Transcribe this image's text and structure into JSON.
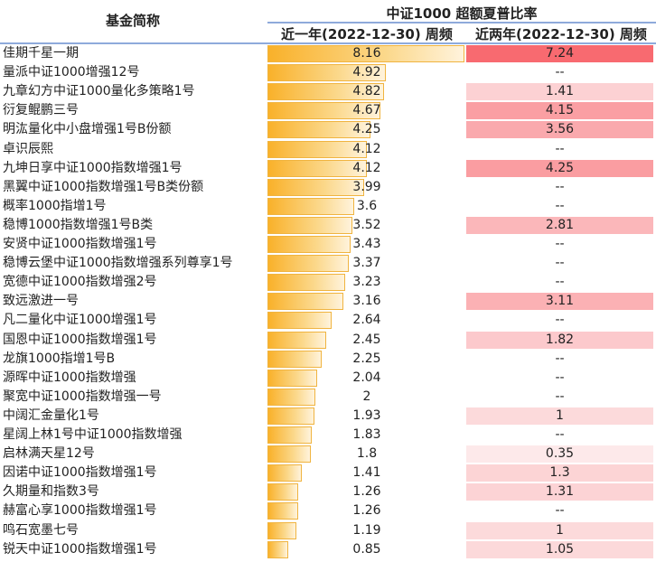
{
  "header": {
    "name_col": "基金简称",
    "group": "中证1000 超额夏普比率",
    "col1": "近一年(2022-12-30) 周频",
    "col2": "近两年(2022-12-30) 周频"
  },
  "colors": {
    "bar": "#f9b12a",
    "heat_high": "#f86a70",
    "heat_low": "#fde9ea"
  },
  "chart_data": {
    "type": "table",
    "rows": [
      {
        "name": "佳期千星一期",
        "v1": 8.16,
        "v1_text": "8.16",
        "v2": 7.24,
        "v2_text": "7.24"
      },
      {
        "name": "量派中证1000增强12号",
        "v1": 4.92,
        "v1_text": "4.92",
        "v2": null,
        "v2_text": "--"
      },
      {
        "name": "九章幻方中证1000量化多策略1号",
        "v1": 4.82,
        "v1_text": "4.82",
        "v2": 1.41,
        "v2_text": "1.41"
      },
      {
        "name": "衍复鲲鹏三号",
        "v1": 4.67,
        "v1_text": "4.67",
        "v2": 4.15,
        "v2_text": "4.15"
      },
      {
        "name": "明汯量化中小盘增强1号B份额",
        "v1": 4.25,
        "v1_text": "4.25",
        "v2": 3.56,
        "v2_text": "3.56"
      },
      {
        "name": "卓识辰熙",
        "v1": 4.12,
        "v1_text": "4.12",
        "v2": null,
        "v2_text": "--"
      },
      {
        "name": "九坤日享中证1000指数增强1号",
        "v1": 4.12,
        "v1_text": "4.12",
        "v2": 4.25,
        "v2_text": "4.25"
      },
      {
        "name": "黑翼中证1000指数增强1号B类份额",
        "v1": 3.99,
        "v1_text": "3.99",
        "v2": null,
        "v2_text": "--"
      },
      {
        "name": "概率1000指增1号",
        "v1": 3.6,
        "v1_text": "3.6",
        "v2": null,
        "v2_text": "--"
      },
      {
        "name": "稳博1000指数增强1号B类",
        "v1": 3.52,
        "v1_text": "3.52",
        "v2": 2.81,
        "v2_text": "2.81"
      },
      {
        "name": "安贤中证1000指数增强1号",
        "v1": 3.43,
        "v1_text": "3.43",
        "v2": null,
        "v2_text": "--"
      },
      {
        "name": "稳博云堡中证1000指数增强系列尊享1号",
        "v1": 3.37,
        "v1_text": "3.37",
        "v2": null,
        "v2_text": "--"
      },
      {
        "name": "宽德中证1000指数增强2号",
        "v1": 3.23,
        "v1_text": "3.23",
        "v2": null,
        "v2_text": "--"
      },
      {
        "name": "致远激进一号",
        "v1": 3.16,
        "v1_text": "3.16",
        "v2": 3.11,
        "v2_text": "3.11"
      },
      {
        "name": "凡二量化中证1000增强1号",
        "v1": 2.64,
        "v1_text": "2.64",
        "v2": null,
        "v2_text": "--"
      },
      {
        "name": "国恩中证1000指数增强1号",
        "v1": 2.45,
        "v1_text": "2.45",
        "v2": 1.82,
        "v2_text": "1.82"
      },
      {
        "name": "龙旗1000指增1号B",
        "v1": 2.25,
        "v1_text": "2.25",
        "v2": null,
        "v2_text": "--"
      },
      {
        "name": "源晖中证1000指数增强",
        "v1": 2.04,
        "v1_text": "2.04",
        "v2": null,
        "v2_text": "--"
      },
      {
        "name": "聚宽中证1000指数增强一号",
        "v1": 2,
        "v1_text": "2",
        "v2": null,
        "v2_text": "--"
      },
      {
        "name": "中阔汇金量化1号",
        "v1": 1.93,
        "v1_text": "1.93",
        "v2": 1,
        "v2_text": "1"
      },
      {
        "name": "星阔上林1号中证1000指数增强",
        "v1": 1.83,
        "v1_text": "1.83",
        "v2": null,
        "v2_text": "--"
      },
      {
        "name": "启林满天星12号",
        "v1": 1.8,
        "v1_text": "1.8",
        "v2": 0.35,
        "v2_text": "0.35"
      },
      {
        "name": "因诺中证1000指数增强1号",
        "v1": 1.41,
        "v1_text": "1.41",
        "v2": 1.3,
        "v2_text": "1.3"
      },
      {
        "name": "久期量和指数3号",
        "v1": 1.26,
        "v1_text": "1.26",
        "v2": 1.31,
        "v2_text": "1.31"
      },
      {
        "name": "赫富心享1000指数增强1号",
        "v1": 1.26,
        "v1_text": "1.26",
        "v2": null,
        "v2_text": "--"
      },
      {
        "name": "鸣石宽墨七号",
        "v1": 1.19,
        "v1_text": "1.19",
        "v2": 1,
        "v2_text": "1"
      },
      {
        "name": "锐天中证1000指数增强1号",
        "v1": 0.85,
        "v1_text": "0.85",
        "v2": 1.05,
        "v2_text": "1.05"
      }
    ]
  }
}
